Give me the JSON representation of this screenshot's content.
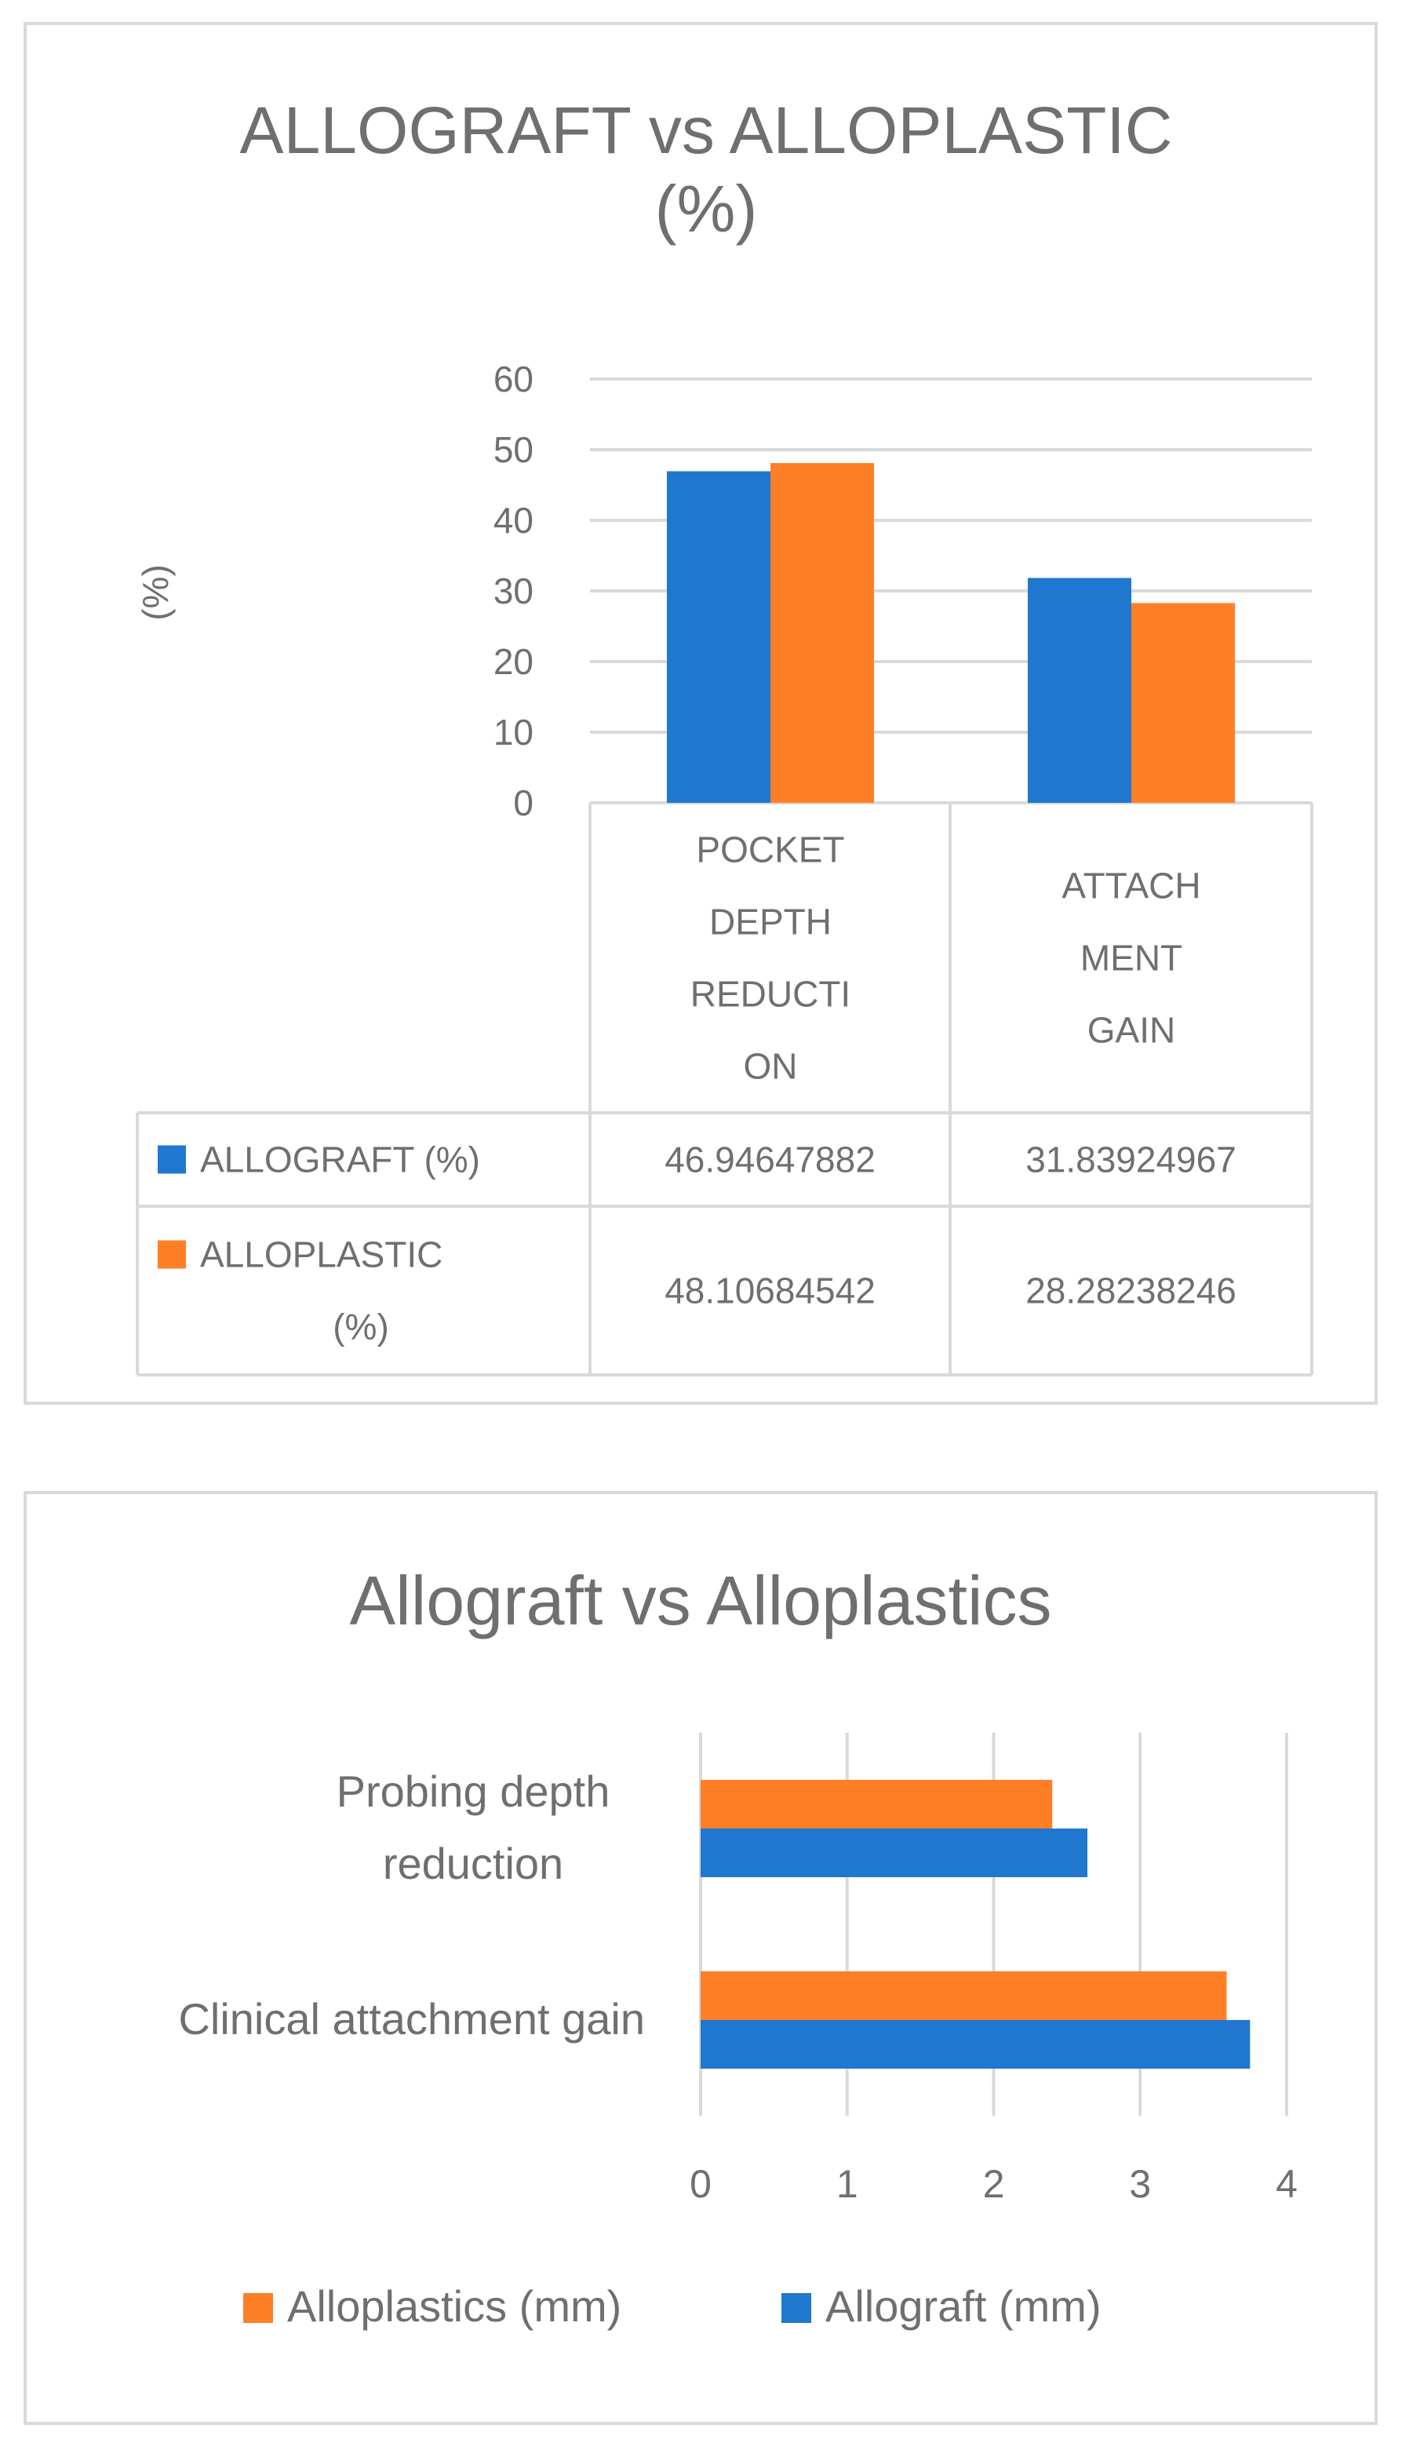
{
  "chart_data": [
    {
      "type": "bar",
      "title": "ALLOGRAFT vs ALLOPLASTIC (%)",
      "title_lines": [
        "ALLOGRAFT vs ALLOPLASTIC",
        "(%)"
      ],
      "ylabel": "(%)",
      "ylim": [
        0,
        60
      ],
      "yticks": [
        0,
        10,
        20,
        30,
        40,
        50,
        60
      ],
      "grid": true,
      "legend": "data-table",
      "categories": [
        "POCKET DEPTH REDUCTION",
        "ATTACHMENT GAIN"
      ],
      "category_label_lines": [
        [
          "POCKET",
          "DEPTH",
          "REDUCTI",
          "ON"
        ],
        [
          "ATTACH",
          "MENT",
          "GAIN"
        ]
      ],
      "series": [
        {
          "name": "ALLOGRAFT (%)",
          "name_lines": [
            "ALLOGRAFT (%)"
          ],
          "color": "#1f77d0",
          "values": [
            46.94647882,
            31.83924967
          ],
          "table_values": [
            "46.94647882",
            "31.83924967"
          ]
        },
        {
          "name": "ALLOPLASTIC (%)",
          "name_lines": [
            "ALLOPLASTIC",
            "(%)"
          ],
          "color": "#ff7f27",
          "values": [
            48.10684542,
            28.28238246
          ],
          "table_values": [
            "48.10684542",
            "28.28238246"
          ]
        }
      ]
    },
    {
      "type": "bar",
      "orientation": "horizontal",
      "title": "Allograft vs Alloplastics",
      "xlim": [
        0,
        4
      ],
      "xticks": [
        0,
        1,
        2,
        3,
        4
      ],
      "grid": true,
      "legend": "bottom",
      "categories": [
        "Probing depth reduction",
        "Clinical attachment gain"
      ],
      "category_label_lines": [
        [
          "Probing depth",
          "reduction"
        ],
        [
          "Clinical attachment gain"
        ]
      ],
      "series": [
        {
          "name": "Alloplastics (mm)",
          "color": "#ff7f27",
          "values": [
            2.4,
            3.59
          ]
        },
        {
          "name": "Allograft (mm)",
          "color": "#1f77d0",
          "values": [
            2.64,
            3.75
          ]
        }
      ]
    }
  ]
}
